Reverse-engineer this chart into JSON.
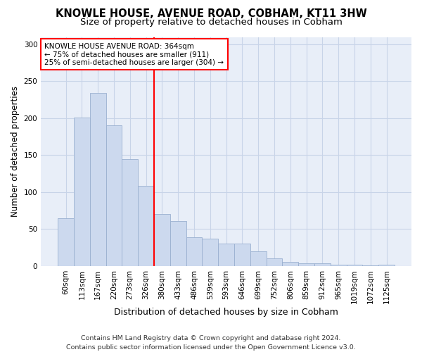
{
  "title_line1": "KNOWLE HOUSE, AVENUE ROAD, COBHAM, KT11 3HW",
  "title_line2": "Size of property relative to detached houses in Cobham",
  "xlabel": "Distribution of detached houses by size in Cobham",
  "ylabel": "Number of detached properties",
  "categories": [
    "60sqm",
    "113sqm",
    "167sqm",
    "220sqm",
    "273sqm",
    "326sqm",
    "380sqm",
    "433sqm",
    "486sqm",
    "539sqm",
    "593sqm",
    "646sqm",
    "699sqm",
    "752sqm",
    "806sqm",
    "859sqm",
    "912sqm",
    "965sqm",
    "1019sqm",
    "1072sqm",
    "1125sqm"
  ],
  "values": [
    65,
    201,
    234,
    190,
    145,
    108,
    70,
    61,
    39,
    37,
    30,
    30,
    20,
    10,
    6,
    4,
    4,
    2,
    2,
    1,
    2
  ],
  "bar_color": "#ccd9ee",
  "bar_edgecolor": "#9ab0d0",
  "vline_x_index": 6,
  "vline_color": "red",
  "annotation_text": "KNOWLE HOUSE AVENUE ROAD: 364sqm\n← 75% of detached houses are smaller (911)\n25% of semi-detached houses are larger (304) →",
  "annotation_box_color": "white",
  "annotation_box_edgecolor": "red",
  "ylim": [
    0,
    310
  ],
  "yticks": [
    0,
    50,
    100,
    150,
    200,
    250,
    300
  ],
  "grid_color": "#c8d4e8",
  "background_color": "#e8eef8",
  "footer_line1": "Contains HM Land Registry data © Crown copyright and database right 2024.",
  "footer_line2": "Contains public sector information licensed under the Open Government Licence v3.0.",
  "title_fontsize": 10.5,
  "subtitle_fontsize": 9.5,
  "tick_fontsize": 7.5,
  "xlabel_fontsize": 9,
  "ylabel_fontsize": 8.5,
  "footer_fontsize": 6.8
}
